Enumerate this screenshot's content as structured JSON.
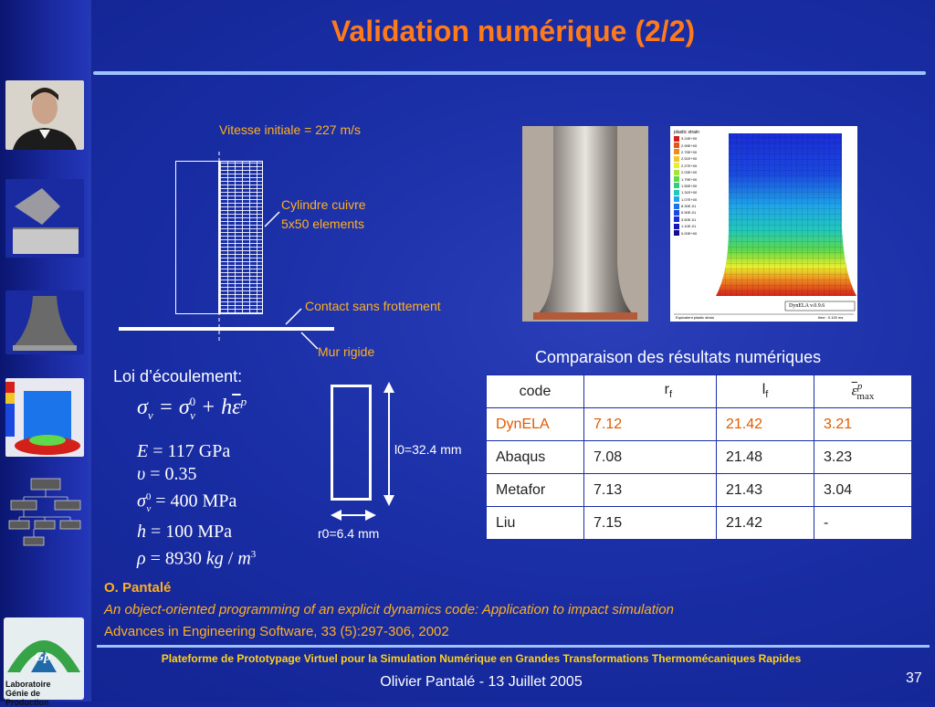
{
  "slide": {
    "title": "Validation numérique (2/2)",
    "page_number": "37"
  },
  "diagram": {
    "initial_velocity": "Vitesse initiale = 227 m/s",
    "cylinder_label_line1": "Cylindre cuivre",
    "cylinder_label_line2": "5x50 elements",
    "contact_label": "Contact sans frottement",
    "wall_label": "Mur rigide"
  },
  "flow_law": {
    "heading": "Loi d’écoulement:",
    "equation": "σ_v = σ_v^0 + h ε̄^p",
    "params": [
      {
        "lhs": "E",
        "rhs": "117 GPa"
      },
      {
        "lhs": "υ",
        "rhs": "0.35"
      },
      {
        "lhs": "σ_v^0",
        "rhs": "400 MPa"
      },
      {
        "lhs": "h",
        "rhs": "100 MPa"
      },
      {
        "lhs": "ρ",
        "rhs": "8930 kg / m³"
      }
    ]
  },
  "specimen": {
    "length_label": "l0=32.4 mm",
    "radius_label": "r0=6.4 mm"
  },
  "sim_image": {
    "legend_title": "plastic strain",
    "legend_values": [
      "3.24E+00",
      "2.99E+00",
      "2.75E+00",
      "2.51E+00",
      "2.27E+00",
      "2.03E+00",
      "1.79E+00",
      "1.55E+00",
      "1.31E+00",
      "1.07E+00",
      "8.30E-01",
      "5.90E-01",
      "3.50E-01",
      "1.10E-01",
      "0.00E+00"
    ],
    "footer_left": "Equivalent plastic strain",
    "footer_right": "time : 0.100 ms",
    "version_label": "DynELA v.0.9.6",
    "colors": [
      "#d4201a",
      "#e8541c",
      "#ee8a20",
      "#f2c624",
      "#e9ef2c",
      "#a6e638",
      "#5fd84a",
      "#2fd07c",
      "#22c9b8",
      "#1fa6e8",
      "#1c74ea",
      "#1b49e0",
      "#1a2cd6",
      "#1616b8",
      "#0f0f90"
    ]
  },
  "comparison": {
    "title": "Comparaison des résultats numériques",
    "headers": [
      "code",
      "rf",
      "lf",
      "ε̄max p"
    ],
    "rows": [
      {
        "code": "DynELA",
        "rf": "7.12",
        "lf": "21.42",
        "emax": "3.21"
      },
      {
        "code": "Abaqus",
        "rf": "7.08",
        "lf": "21.48",
        "emax": "3.23"
      },
      {
        "code": "Metafor",
        "rf": "7.13",
        "lf": "21.43",
        "emax": "3.04"
      },
      {
        "code": "Liu",
        "rf": "7.15",
        "lf": "21.42",
        "emax": "-"
      }
    ]
  },
  "reference": {
    "author": "O. Pantalé",
    "title": "An object-oriented programming of an explicit dynamics code: Application to impact simulation",
    "journal": "Advances in Engineering Software, 33 (5):297-306, 2002"
  },
  "footer": {
    "platform": "Plateforme de Prototypage Virtuel pour la Simulation Numérique en Grandes Transformations Thermomécaniques Rapides",
    "presenter": "Olivier Pantalé - 13 Juillet 2005"
  },
  "sidebar": {
    "logo_text": "Gp",
    "lab_line1": "Laboratoire",
    "lab_line2": "Génie de Production"
  }
}
